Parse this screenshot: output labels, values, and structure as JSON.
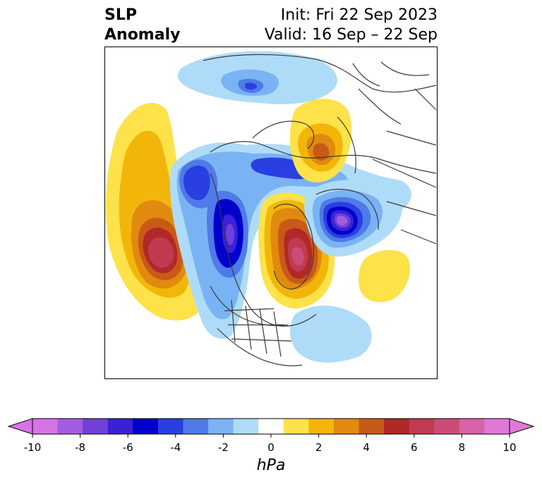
{
  "header": {
    "title_line1": "SLP",
    "title_line2": "Anomaly",
    "init_line": "Init: Fri 22 Sep 2023",
    "valid_line": "Valid: 16 Sep – 22 Sep"
  },
  "colorbar": {
    "unit": "hPa",
    "extend": "both",
    "ticks": [
      "-10",
      "-8",
      "-6",
      "-4",
      "-2",
      "0",
      "2",
      "4",
      "6",
      "8",
      "10"
    ],
    "levels": [
      -10,
      -9,
      -8,
      -7,
      -6,
      -5,
      -4,
      -3,
      -2,
      -1,
      1,
      2,
      3,
      4,
      5,
      6,
      7,
      8,
      9,
      10
    ],
    "colors": [
      "#d674e6",
      "#a45ce0",
      "#7040d8",
      "#3a22d4",
      "#0000cc",
      "#2a3fe0",
      "#4f7ae8",
      "#7ab3f4",
      "#aedcf8",
      "#ffffff",
      "#fde24a",
      "#f2b60a",
      "#e08a10",
      "#c85a18",
      "#b02828",
      "#c03a50",
      "#cc4c78",
      "#d863a8",
      "#e078d8"
    ],
    "under_color": "#d674e6",
    "over_color": "#e078d8"
  },
  "map": {
    "projection": "north-polar-stereographic",
    "palette": {
      "neg_1": "#aedcf8",
      "neg_2": "#7ab3f4",
      "neg_3": "#4f7ae8",
      "neg_4": "#2a3fe0",
      "neg_5": "#0000cc",
      "neg_6": "#3a22d4",
      "neg_7": "#7040d8",
      "neg_8": "#a45ce0",
      "neg_9": "#d674e6",
      "pos_1": "#fde24a",
      "pos_2": "#f2b60a",
      "pos_3": "#e08a10",
      "pos_4": "#c85a18",
      "pos_5": "#b02828",
      "pos_6": "#c03a50",
      "pos_7": "#cc4c78",
      "pos_8": "#d863a8"
    }
  }
}
